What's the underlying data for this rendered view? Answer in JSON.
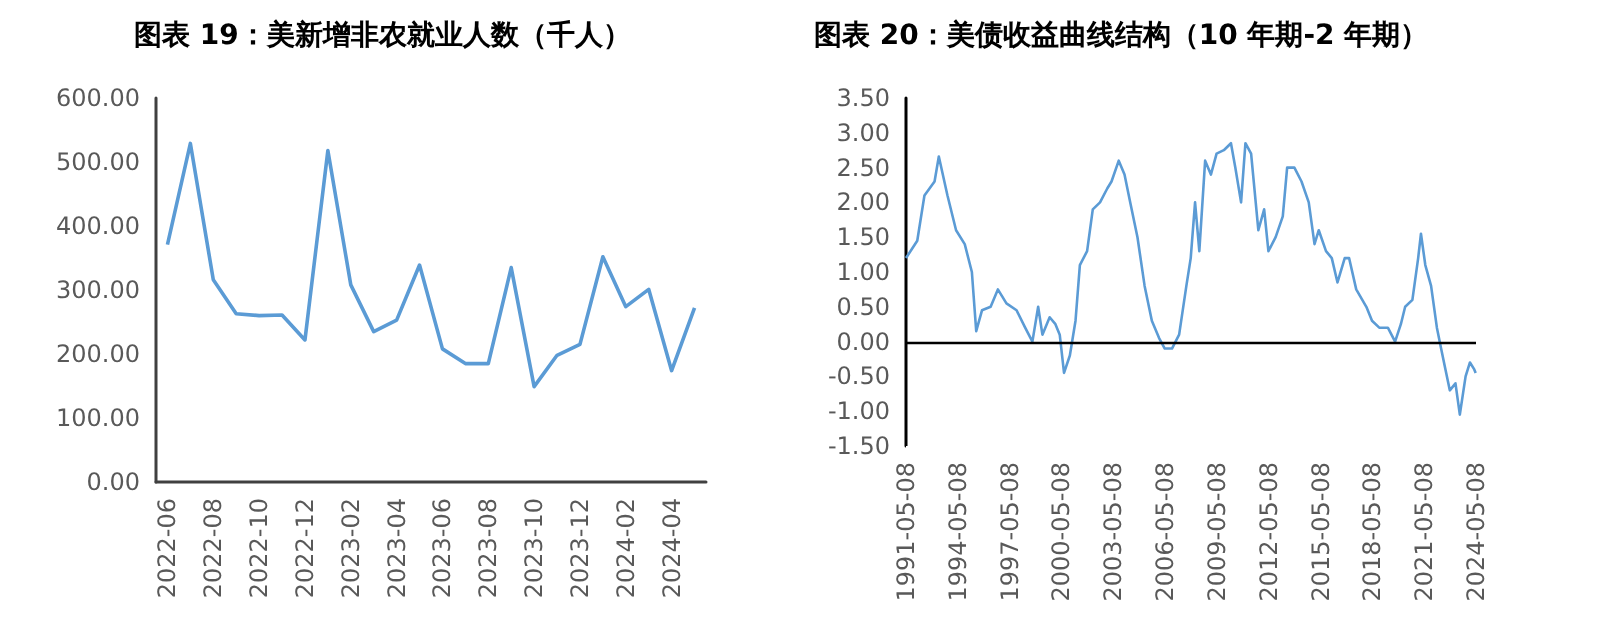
{
  "chart_data": [
    {
      "type": "line",
      "title": "图表 19：美新增非农就业人数（千人）",
      "categories": [
        "2022-06",
        null,
        "2022-08",
        null,
        "2022-10",
        null,
        "2022-12",
        null,
        "2023-02",
        null,
        "2023-04",
        null,
        "2023-06",
        null,
        "2023-08",
        null,
        "2023-10",
        null,
        "2023-12",
        null,
        "2024-02",
        null,
        "2024-04",
        null
      ],
      "series": [
        {
          "color": "#5b9bd5",
          "values": [
            371,
            529,
            316,
            263,
            260,
            261,
            222,
            518,
            308,
            235,
            253,
            339,
            208,
            185,
            185,
            335,
            149,
            198,
            215,
            352,
            274,
            301,
            174,
            272
          ]
        }
      ],
      "ylim": [
        0,
        600
      ],
      "yticks": [
        {
          "value": 0,
          "label": "0.00"
        },
        {
          "value": 100,
          "label": "100.00"
        },
        {
          "value": 200,
          "label": "200.00"
        },
        {
          "value": 300,
          "label": "300.00"
        },
        {
          "value": 400,
          "label": "400.00"
        },
        {
          "value": 500,
          "label": "500.00"
        },
        {
          "value": 600,
          "label": "600.00"
        }
      ]
    },
    {
      "type": "line",
      "title": "图表 20：美债收益曲线结构（10 年期-2 年期）",
      "x": [
        "1991-05-08",
        "1992-01",
        "1992-06",
        "1993-01",
        "1993-04",
        "1993-10",
        "1994-04",
        "1994-10",
        "1995-03",
        "1995-06",
        "1995-10",
        "1996-04",
        "1996-09",
        "1997-03",
        "1997-10",
        "1998-04",
        "1998-09",
        "1999-01",
        "1999-04",
        "1999-09",
        "2000-01",
        "2000-04",
        "2000-07",
        "2000-11",
        "2001-03",
        "2001-06",
        "2001-11",
        "2002-03",
        "2002-08",
        "2003-01",
        "2003-04",
        "2003-09",
        "2004-01",
        "2004-05",
        "2004-10",
        "2005-03",
        "2005-08",
        "2006-01",
        "2006-05",
        "2006-10",
        "2007-03",
        "2007-08",
        "2007-11",
        "2008-02",
        "2008-05",
        "2008-09",
        "2009-01",
        "2009-05",
        "2009-10",
        "2010-03",
        "2010-06",
        "2010-10",
        "2011-01",
        "2011-05",
        "2011-10",
        "2012-02",
        "2012-05",
        "2012-10",
        "2013-03",
        "2013-06",
        "2013-11",
        "2014-04",
        "2014-09",
        "2015-01",
        "2015-04",
        "2015-09",
        "2016-01",
        "2016-05",
        "2016-10",
        "2017-01",
        "2017-06",
        "2018-01",
        "2018-05",
        "2018-10",
        "2019-04",
        "2019-09",
        "2020-01",
        "2020-04",
        "2020-09",
        "2021-01",
        "2021-03",
        "2021-06",
        "2021-10",
        "2022-02",
        "2022-05",
        "2022-08",
        "2022-11",
        "2023-03",
        "2023-06",
        "2023-10",
        "2024-01",
        "2024-04",
        "2024-05"
      ],
      "series": [
        {
          "color": "#5b9bd5",
          "values": [
            1.2,
            1.45,
            2.1,
            2.3,
            2.66,
            2.1,
            1.6,
            1.4,
            1.0,
            0.15,
            0.45,
            0.5,
            0.75,
            0.55,
            0.45,
            0.2,
            0.0,
            0.5,
            0.1,
            0.35,
            0.25,
            0.1,
            -0.45,
            -0.2,
            0.3,
            1.1,
            1.3,
            1.9,
            2.0,
            2.2,
            2.3,
            2.6,
            2.4,
            2.0,
            1.5,
            0.8,
            0.3,
            0.05,
            -0.1,
            -0.1,
            0.1,
            0.8,
            1.2,
            2.0,
            1.3,
            2.6,
            2.4,
            2.7,
            2.75,
            2.85,
            2.5,
            2.0,
            2.85,
            2.7,
            1.6,
            1.9,
            1.3,
            1.5,
            1.8,
            2.5,
            2.5,
            2.3,
            2.0,
            1.4,
            1.6,
            1.3,
            1.2,
            0.85,
            1.2,
            1.2,
            0.75,
            0.5,
            0.3,
            0.2,
            0.2,
            0.0,
            0.25,
            0.5,
            0.6,
            1.2,
            1.55,
            1.1,
            0.8,
            0.2,
            -0.1,
            -0.4,
            -0.7,
            -0.6,
            -1.05,
            -0.5,
            -0.3,
            -0.4,
            -0.45
          ]
        }
      ],
      "xlim": [
        "1991-05-08",
        "2024-05-08"
      ],
      "xticks": [
        "1991-05-08",
        "1994-05-08",
        "1997-05-08",
        "2000-05-08",
        "2003-05-08",
        "2006-05-08",
        "2009-05-08",
        "2012-05-08",
        "2015-05-08",
        "2018-05-08",
        "2021-05-08",
        "2024-05-08"
      ],
      "ylim": [
        -1.5,
        3.5
      ],
      "yticks": [
        {
          "value": -1.5,
          "label": "-1.50"
        },
        {
          "value": -1,
          "label": "-1.00"
        },
        {
          "value": -0.5,
          "label": "-0.50"
        },
        {
          "value": 0,
          "label": "0.00"
        },
        {
          "value": 0.5,
          "label": "0.50"
        },
        {
          "value": 1,
          "label": "1.00"
        },
        {
          "value": 1.5,
          "label": "1.50"
        },
        {
          "value": 2,
          "label": "2.00"
        },
        {
          "value": 2.5,
          "label": "2.50"
        },
        {
          "value": 3,
          "label": "3.00"
        },
        {
          "value": 3.5,
          "label": "3.50"
        }
      ],
      "ref_lines": [
        {
          "axis": "y",
          "value": 0,
          "color": "#000000"
        }
      ]
    }
  ]
}
